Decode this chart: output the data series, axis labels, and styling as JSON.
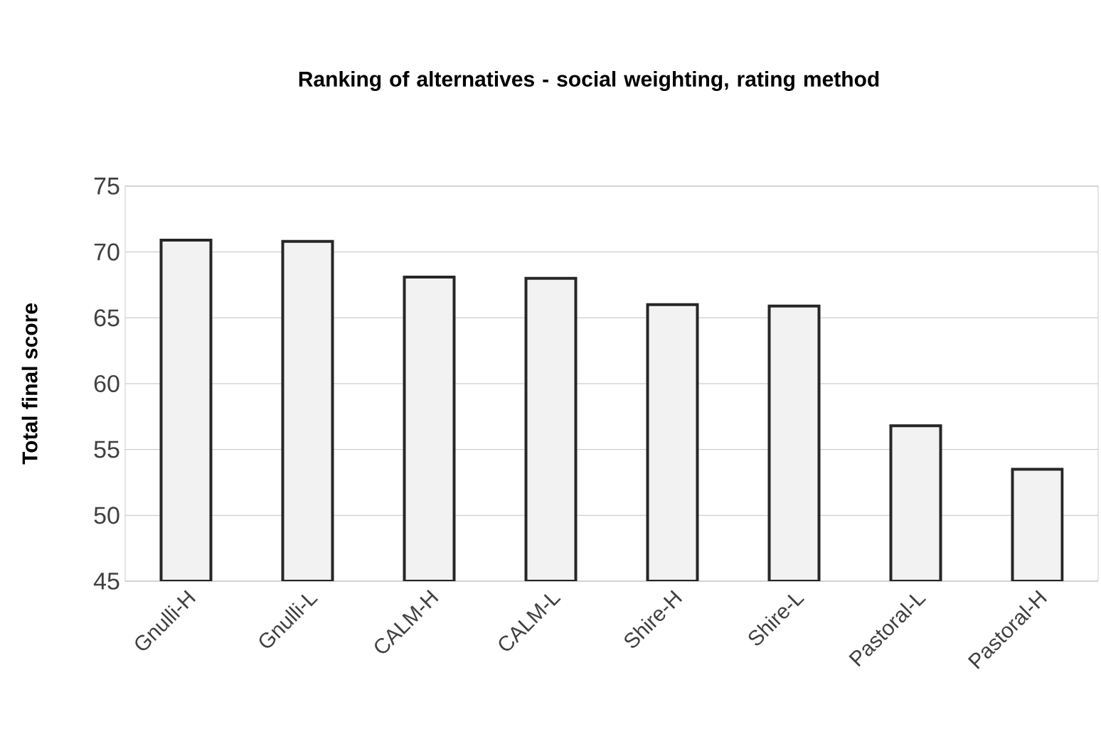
{
  "chart_data": {
    "type": "bar",
    "title": "Ranking of alternatives - social weighting, rating method",
    "ylabel": "Total final score",
    "categories": [
      "Gnulli-H",
      "Gnulli-L",
      "CALM-H",
      "CALM-L",
      "Shire-H",
      "Shire-L",
      "Pastoral-L",
      "Pastoral-H"
    ],
    "values": [
      70.9,
      70.8,
      68.1,
      68.0,
      66.0,
      65.9,
      56.8,
      53.5
    ],
    "color": "#f2f2f2",
    "ylim": [
      45,
      75
    ],
    "yticks": [
      45,
      50,
      55,
      60,
      65,
      70,
      75
    ],
    "grid": "y"
  }
}
